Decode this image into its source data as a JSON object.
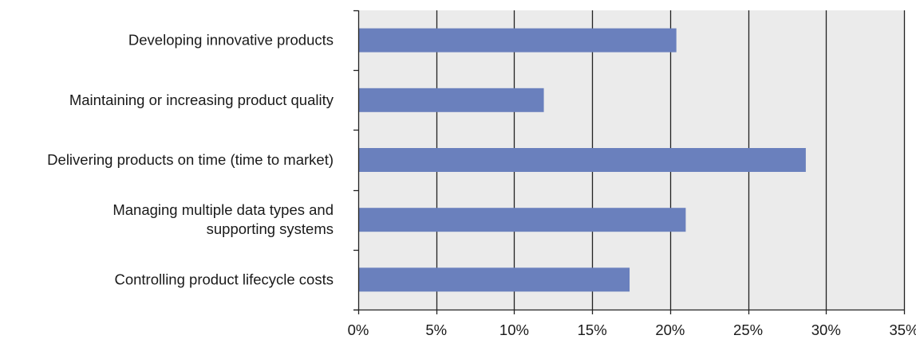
{
  "chart_data": {
    "type": "bar",
    "orientation": "horizontal",
    "categories": [
      "Developing innovative products",
      "Maintaining or increasing product quality",
      "Delivering products on time (time to market)",
      "Managing multiple data types and supporting systems",
      "Controlling product lifecycle costs"
    ],
    "category_lines": [
      [
        "Developing innovative products"
      ],
      [
        "Maintaining or increasing product quality"
      ],
      [
        "Delivering products on time (time to market)"
      ],
      [
        "Managing multiple data types and",
        "supporting systems"
      ],
      [
        "Controlling product lifecycle costs"
      ]
    ],
    "values": [
      20.4,
      11.9,
      28.7,
      21.0,
      17.4
    ],
    "xlim": [
      0,
      35
    ],
    "xticks": [
      0,
      5,
      10,
      15,
      20,
      25,
      30,
      35
    ],
    "xtick_labels": [
      "0%",
      "5%",
      "10%",
      "15%",
      "20%",
      "25%",
      "30%",
      "35%"
    ],
    "grid": true,
    "bar_color": "#6a80bd",
    "plot_background": "#ebebeb",
    "title": "",
    "xlabel": "",
    "ylabel": ""
  }
}
